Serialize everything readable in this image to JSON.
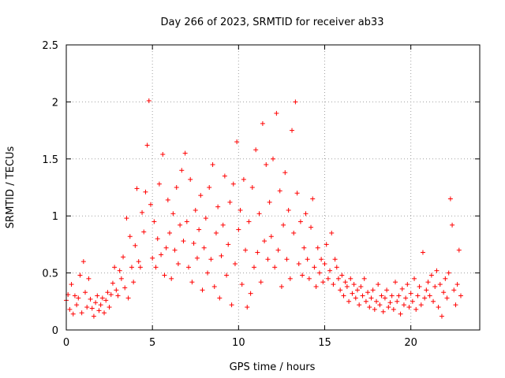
{
  "chart_data": {
    "type": "scatter",
    "title": "Day 266 of 2023, SRMTID for receiver ab33",
    "xlabel": "GPS time / hours",
    "ylabel": "SRMTID / TECUs",
    "xlim": [
      0,
      24
    ],
    "ylim": [
      0,
      2.5
    ],
    "xticks": [
      0,
      5,
      10,
      15,
      20
    ],
    "xtick_labels": [
      "0",
      "5",
      "10",
      "15",
      "20"
    ],
    "yticks": [
      0,
      0.5,
      1,
      1.5,
      2,
      2.5
    ],
    "ytick_labels": [
      "0",
      "0.5",
      "1",
      "1.5",
      "2",
      "2.5"
    ],
    "grid": true,
    "marker": "+",
    "series": [
      {
        "name": "SRMTID",
        "color": "#ff0000",
        "points": [
          [
            0.0,
            0.26
          ],
          [
            0.1,
            0.31
          ],
          [
            0.2,
            0.18
          ],
          [
            0.3,
            0.4
          ],
          [
            0.4,
            0.14
          ],
          [
            0.5,
            0.3
          ],
          [
            0.6,
            0.22
          ],
          [
            0.7,
            0.28
          ],
          [
            0.8,
            0.48
          ],
          [
            0.9,
            0.15
          ],
          [
            1.0,
            0.6
          ],
          [
            1.1,
            0.33
          ],
          [
            1.2,
            0.2
          ],
          [
            1.3,
            0.45
          ],
          [
            1.4,
            0.27
          ],
          [
            1.5,
            0.19
          ],
          [
            1.6,
            0.12
          ],
          [
            1.7,
            0.24
          ],
          [
            1.8,
            0.3
          ],
          [
            1.9,
            0.17
          ],
          [
            2.0,
            0.22
          ],
          [
            2.1,
            0.28
          ],
          [
            2.2,
            0.15
          ],
          [
            2.3,
            0.26
          ],
          [
            2.4,
            0.33
          ],
          [
            2.5,
            0.2
          ],
          [
            2.6,
            0.31
          ],
          [
            2.7,
            0.41
          ],
          [
            2.8,
            0.55
          ],
          [
            2.9,
            0.35
          ],
          [
            3.0,
            0.3
          ],
          [
            3.1,
            0.52
          ],
          [
            3.2,
            0.45
          ],
          [
            3.3,
            0.64
          ],
          [
            3.4,
            0.37
          ],
          [
            3.5,
            0.98
          ],
          [
            3.6,
            0.28
          ],
          [
            3.7,
            0.82
          ],
          [
            3.8,
            0.55
          ],
          [
            3.9,
            0.42
          ],
          [
            4.0,
            0.74
          ],
          [
            4.1,
            1.24
          ],
          [
            4.2,
            0.6
          ],
          [
            4.3,
            0.55
          ],
          [
            4.4,
            1.03
          ],
          [
            4.5,
            0.86
          ],
          [
            4.6,
            1.21
          ],
          [
            4.7,
            1.62
          ],
          [
            4.8,
            2.01
          ],
          [
            4.9,
            1.1
          ],
          [
            5.0,
            0.63
          ],
          [
            5.1,
            0.95
          ],
          [
            5.2,
            0.55
          ],
          [
            5.3,
            0.8
          ],
          [
            5.4,
            1.28
          ],
          [
            5.5,
            0.66
          ],
          [
            5.6,
            1.54
          ],
          [
            5.7,
            0.48
          ],
          [
            5.8,
            0.72
          ],
          [
            5.9,
            1.14
          ],
          [
            6.0,
            0.85
          ],
          [
            6.1,
            0.45
          ],
          [
            6.2,
            1.02
          ],
          [
            6.3,
            0.7
          ],
          [
            6.4,
            1.25
          ],
          [
            6.5,
            0.58
          ],
          [
            6.6,
            0.92
          ],
          [
            6.7,
            1.4
          ],
          [
            6.8,
            0.78
          ],
          [
            6.9,
            1.55
          ],
          [
            7.0,
            0.95
          ],
          [
            7.1,
            0.55
          ],
          [
            7.2,
            1.32
          ],
          [
            7.3,
            0.42
          ],
          [
            7.4,
            0.76
          ],
          [
            7.5,
            1.05
          ],
          [
            7.6,
            0.63
          ],
          [
            7.7,
            0.88
          ],
          [
            7.8,
            1.18
          ],
          [
            7.9,
            0.35
          ],
          [
            8.0,
            0.72
          ],
          [
            8.1,
            0.98
          ],
          [
            8.2,
            0.5
          ],
          [
            8.3,
            1.25
          ],
          [
            8.4,
            0.62
          ],
          [
            8.5,
            1.45
          ],
          [
            8.6,
            0.38
          ],
          [
            8.7,
            0.85
          ],
          [
            8.8,
            1.08
          ],
          [
            8.9,
            0.28
          ],
          [
            9.0,
            0.65
          ],
          [
            9.1,
            0.92
          ],
          [
            9.2,
            1.35
          ],
          [
            9.3,
            0.48
          ],
          [
            9.4,
            0.75
          ],
          [
            9.5,
            1.12
          ],
          [
            9.6,
            0.22
          ],
          [
            9.7,
            1.28
          ],
          [
            9.8,
            0.58
          ],
          [
            9.9,
            1.65
          ],
          [
            10.0,
            0.88
          ],
          [
            10.1,
            1.05
          ],
          [
            10.2,
            0.4
          ],
          [
            10.3,
            1.32
          ],
          [
            10.4,
            0.7
          ],
          [
            10.5,
            0.2
          ],
          [
            10.6,
            0.95
          ],
          [
            10.7,
            0.32
          ],
          [
            10.8,
            1.25
          ],
          [
            10.9,
            0.55
          ],
          [
            11.0,
            1.58
          ],
          [
            11.1,
            0.68
          ],
          [
            11.2,
            1.02
          ],
          [
            11.3,
            0.42
          ],
          [
            11.4,
            1.81
          ],
          [
            11.5,
            0.78
          ],
          [
            11.6,
            1.45
          ],
          [
            11.7,
            0.62
          ],
          [
            11.8,
            1.12
          ],
          [
            11.9,
            0.82
          ],
          [
            12.0,
            1.5
          ],
          [
            12.1,
            0.55
          ],
          [
            12.2,
            1.9
          ],
          [
            12.3,
            0.7
          ],
          [
            12.4,
            1.22
          ],
          [
            12.5,
            0.38
          ],
          [
            12.6,
            0.92
          ],
          [
            12.7,
            1.38
          ],
          [
            12.8,
            0.62
          ],
          [
            12.9,
            1.05
          ],
          [
            13.0,
            0.45
          ],
          [
            13.1,
            1.75
          ],
          [
            13.2,
            0.85
          ],
          [
            13.3,
            2.0
          ],
          [
            13.4,
            1.2
          ],
          [
            13.5,
            0.58
          ],
          [
            13.6,
            0.95
          ],
          [
            13.7,
            0.48
          ],
          [
            13.8,
            0.72
          ],
          [
            13.9,
            1.02
          ],
          [
            14.0,
            0.62
          ],
          [
            14.1,
            0.45
          ],
          [
            14.2,
            0.9
          ],
          [
            14.3,
            1.15
          ],
          [
            14.4,
            0.55
          ],
          [
            14.5,
            0.38
          ],
          [
            14.6,
            0.72
          ],
          [
            14.7,
            0.5
          ],
          [
            14.8,
            0.62
          ],
          [
            14.9,
            0.42
          ],
          [
            15.0,
            0.58
          ],
          [
            15.1,
            0.75
          ],
          [
            15.2,
            0.45
          ],
          [
            15.3,
            0.52
          ],
          [
            15.4,
            0.85
          ],
          [
            15.5,
            0.4
          ],
          [
            15.6,
            0.62
          ],
          [
            15.7,
            0.55
          ],
          [
            15.8,
            0.45
          ],
          [
            15.9,
            0.35
          ],
          [
            16.0,
            0.48
          ],
          [
            16.1,
            0.3
          ],
          [
            16.2,
            0.42
          ],
          [
            16.3,
            0.38
          ],
          [
            16.4,
            0.25
          ],
          [
            16.5,
            0.45
          ],
          [
            16.6,
            0.32
          ],
          [
            16.7,
            0.4
          ],
          [
            16.8,
            0.28
          ],
          [
            16.9,
            0.35
          ],
          [
            17.0,
            0.22
          ],
          [
            17.1,
            0.38
          ],
          [
            17.2,
            0.3
          ],
          [
            17.3,
            0.45
          ],
          [
            17.4,
            0.25
          ],
          [
            17.5,
            0.33
          ],
          [
            17.6,
            0.2
          ],
          [
            17.7,
            0.28
          ],
          [
            17.8,
            0.35
          ],
          [
            17.9,
            0.18
          ],
          [
            18.0,
            0.25
          ],
          [
            18.1,
            0.4
          ],
          [
            18.2,
            0.22
          ],
          [
            18.3,
            0.3
          ],
          [
            18.4,
            0.16
          ],
          [
            18.5,
            0.28
          ],
          [
            18.6,
            0.35
          ],
          [
            18.7,
            0.2
          ],
          [
            18.8,
            0.24
          ],
          [
            18.9,
            0.3
          ],
          [
            19.0,
            0.18
          ],
          [
            19.1,
            0.42
          ],
          [
            19.2,
            0.25
          ],
          [
            19.3,
            0.3
          ],
          [
            19.4,
            0.14
          ],
          [
            19.5,
            0.36
          ],
          [
            19.6,
            0.22
          ],
          [
            19.7,
            0.28
          ],
          [
            19.8,
            0.4
          ],
          [
            19.9,
            0.2
          ],
          [
            20.0,
            0.32
          ],
          [
            20.1,
            0.25
          ],
          [
            20.2,
            0.45
          ],
          [
            20.3,
            0.18
          ],
          [
            20.4,
            0.3
          ],
          [
            20.5,
            0.38
          ],
          [
            20.6,
            0.22
          ],
          [
            20.7,
            0.68
          ],
          [
            20.8,
            0.28
          ],
          [
            20.9,
            0.35
          ],
          [
            21.0,
            0.42
          ],
          [
            21.1,
            0.3
          ],
          [
            21.2,
            0.48
          ],
          [
            21.3,
            0.25
          ],
          [
            21.4,
            0.38
          ],
          [
            21.5,
            0.52
          ],
          [
            21.6,
            0.2
          ],
          [
            21.7,
            0.4
          ],
          [
            21.8,
            0.12
          ],
          [
            21.9,
            0.33
          ],
          [
            22.0,
            0.45
          ],
          [
            22.1,
            0.28
          ],
          [
            22.2,
            0.5
          ],
          [
            22.3,
            1.15
          ],
          [
            22.4,
            0.92
          ],
          [
            22.5,
            0.35
          ],
          [
            22.6,
            0.22
          ],
          [
            22.7,
            0.4
          ],
          [
            22.8,
            0.7
          ],
          [
            22.9,
            0.3
          ]
        ]
      }
    ]
  }
}
